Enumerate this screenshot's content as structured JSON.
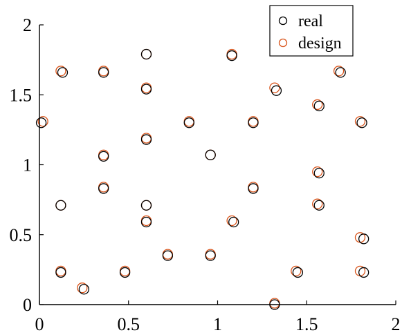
{
  "chart_data": {
    "type": "scatter",
    "title": "",
    "xlabel": "",
    "ylabel": "",
    "xlim": [
      0,
      2
    ],
    "ylim": [
      0,
      2
    ],
    "xticks": [
      "0",
      "0.5",
      "1",
      "1.5",
      "2"
    ],
    "yticks": [
      "0",
      "0.5",
      "1",
      "1.5",
      "2"
    ],
    "grid": false,
    "legend_position": "top-right",
    "series": [
      {
        "name": "real",
        "color": "#000000",
        "marker": "open-circle",
        "points": [
          [
            0.01,
            1.3
          ],
          [
            0.13,
            1.66
          ],
          [
            0.12,
            0.71
          ],
          [
            0.12,
            0.23
          ],
          [
            0.25,
            0.11
          ],
          [
            0.36,
            1.66
          ],
          [
            0.36,
            1.06
          ],
          [
            0.36,
            0.83
          ],
          [
            0.48,
            0.23
          ],
          [
            0.6,
            1.79
          ],
          [
            0.6,
            1.54
          ],
          [
            0.6,
            1.18
          ],
          [
            0.6,
            0.71
          ],
          [
            0.6,
            0.59
          ],
          [
            0.72,
            0.35
          ],
          [
            0.84,
            1.3
          ],
          [
            0.96,
            1.07
          ],
          [
            0.96,
            0.35
          ],
          [
            1.08,
            1.78
          ],
          [
            1.09,
            0.59
          ],
          [
            1.2,
            1.3
          ],
          [
            1.2,
            0.83
          ],
          [
            1.32,
            0.0
          ],
          [
            1.33,
            1.53
          ],
          [
            1.45,
            0.23
          ],
          [
            1.57,
            1.42
          ],
          [
            1.57,
            0.94
          ],
          [
            1.57,
            0.71
          ],
          [
            1.69,
            1.66
          ],
          [
            1.81,
            1.3
          ],
          [
            1.82,
            0.47
          ],
          [
            1.82,
            0.23
          ]
        ]
      },
      {
        "name": "design",
        "color": "#d95319",
        "marker": "open-circle",
        "points": [
          [
            0.02,
            1.31
          ],
          [
            0.12,
            1.67
          ],
          [
            0.12,
            0.71
          ],
          [
            0.12,
            0.24
          ],
          [
            0.24,
            0.12
          ],
          [
            0.36,
            1.67
          ],
          [
            0.36,
            1.07
          ],
          [
            0.36,
            0.84
          ],
          [
            0.48,
            0.24
          ],
          [
            0.6,
            1.79
          ],
          [
            0.6,
            1.55
          ],
          [
            0.6,
            1.19
          ],
          [
            0.6,
            0.71
          ],
          [
            0.6,
            0.6
          ],
          [
            0.72,
            0.36
          ],
          [
            0.84,
            1.31
          ],
          [
            0.96,
            1.07
          ],
          [
            0.96,
            0.36
          ],
          [
            1.08,
            1.79
          ],
          [
            1.08,
            0.6
          ],
          [
            1.2,
            1.31
          ],
          [
            1.2,
            0.84
          ],
          [
            1.32,
            0.01
          ],
          [
            1.32,
            1.55
          ],
          [
            1.44,
            0.24
          ],
          [
            1.56,
            1.43
          ],
          [
            1.56,
            0.95
          ],
          [
            1.56,
            0.72
          ],
          [
            1.68,
            1.67
          ],
          [
            1.8,
            1.31
          ],
          [
            1.8,
            0.48
          ],
          [
            1.8,
            0.24
          ]
        ]
      }
    ]
  }
}
